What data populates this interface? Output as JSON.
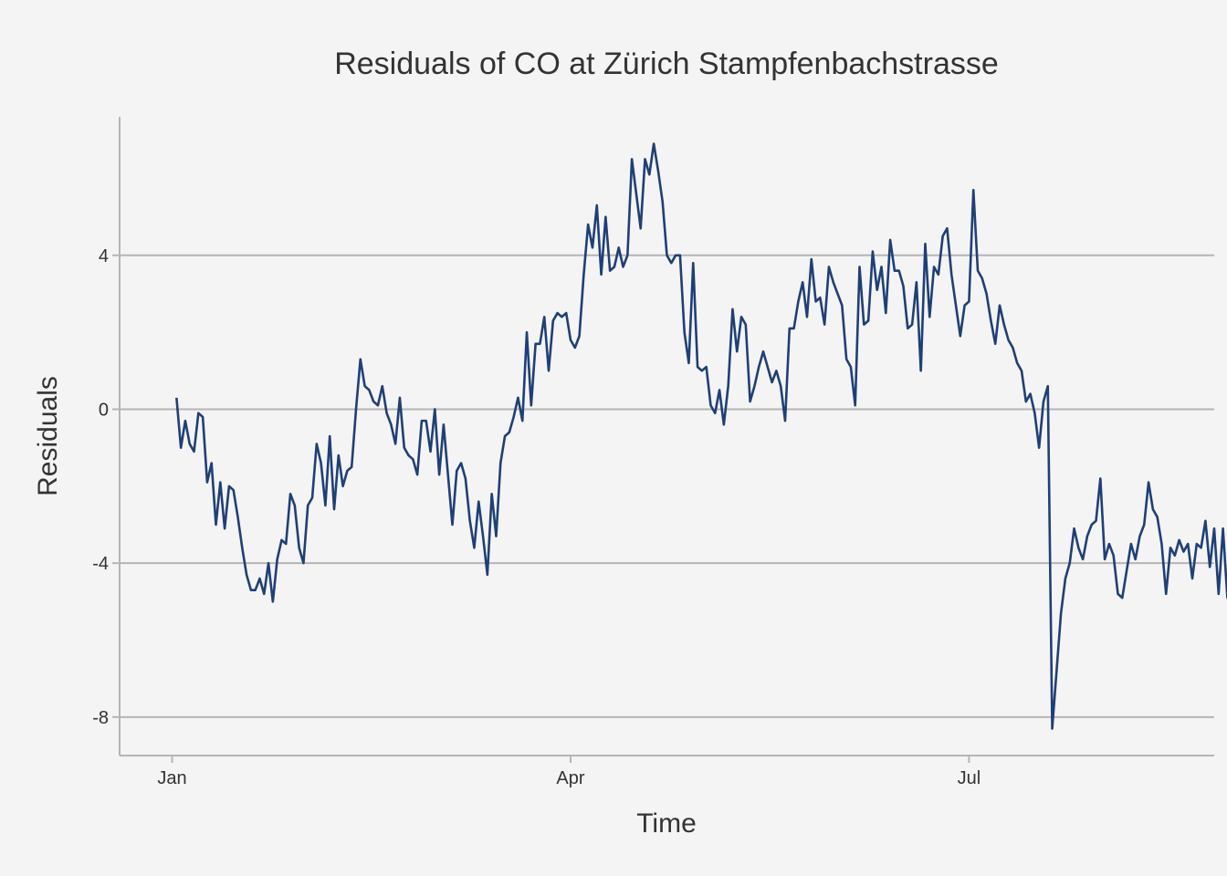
{
  "chart_data": {
    "type": "line",
    "title": "Residuals of CO at Zürich Stampfenbachstrasse",
    "xlabel": "Time",
    "ylabel": "Residuals",
    "x_ticks": [
      "Jan",
      "Apr",
      "Jul"
    ],
    "y_ticks": [
      "4",
      "0",
      "-4",
      "-8"
    ],
    "y_tick_values": [
      4,
      0,
      -4,
      -8
    ],
    "ylim": [
      -9.0,
      7.6
    ],
    "xlim": [
      "2011-12-20",
      "2012-08-26"
    ],
    "x_tick_dates": [
      "2012-01-01",
      "2012-04-01",
      "2012-07-01"
    ],
    "grid": "horizontal",
    "line_color": "#1f3f76",
    "series": [
      {
        "x_start": "2012-01-02",
        "x_step_days": 1,
        "values": [
          0.3,
          -1.0,
          -0.3,
          -0.9,
          -1.1,
          -0.1,
          -0.2,
          -1.9,
          -1.4,
          -3.0,
          -1.9,
          -3.1,
          -2.0,
          -2.1,
          -2.8,
          -3.6,
          -4.3,
          -4.7,
          -4.7,
          -4.4,
          -4.8,
          -4.0,
          -5.0,
          -3.9,
          -3.4,
          -3.5,
          -2.2,
          -2.5,
          -3.6,
          -4.0,
          -2.5,
          -2.3,
          -0.9,
          -1.4,
          -2.5,
          -0.7,
          -2.6,
          -1.2,
          -2.0,
          -1.6,
          -1.5,
          0.0,
          1.3,
          0.6,
          0.5,
          0.2,
          0.1,
          0.6,
          -0.1,
          -0.4,
          -0.9,
          0.3,
          -1.0,
          -1.2,
          -1.3,
          -1.7,
          -0.3,
          -0.3,
          -1.1,
          0.0,
          -1.7,
          -0.4,
          -1.7,
          -3.0,
          -1.6,
          -1.4,
          -1.8,
          -2.9,
          -3.6,
          -2.4,
          -3.3,
          -4.3,
          -2.2,
          -3.3,
          -1.4,
          -0.7,
          -0.6,
          -0.2,
          0.3,
          -0.3,
          2.0,
          0.1,
          1.7,
          1.7,
          2.4,
          1.0,
          2.3,
          2.5,
          2.4,
          2.5,
          1.8,
          1.6,
          1.9,
          3.5,
          4.8,
          4.2,
          5.3,
          3.5,
          5.0,
          3.6,
          3.7,
          4.2,
          3.7,
          4.0,
          6.5,
          5.6,
          4.7,
          6.5,
          6.1,
          6.9,
          6.2,
          5.4,
          4.0,
          3.8,
          4.0,
          4.0,
          2.0,
          1.2,
          3.8,
          1.1,
          1.0,
          1.1,
          0.1,
          -0.1,
          0.5,
          -0.4,
          0.6,
          2.6,
          1.5,
          2.4,
          2.2,
          0.2,
          0.6,
          1.1,
          1.5,
          1.1,
          0.7,
          1.0,
          0.6,
          -0.3,
          2.1,
          2.1,
          2.8,
          3.3,
          2.4,
          3.9,
          2.8,
          2.9,
          2.2,
          3.7,
          3.3,
          3.0,
          2.7,
          1.3,
          1.1,
          0.1,
          3.7,
          2.2,
          2.3,
          4.1,
          3.1,
          3.7,
          2.5,
          4.4,
          3.6,
          3.6,
          3.2,
          2.1,
          2.2,
          3.3,
          1.0,
          4.3,
          2.4,
          3.7,
          3.5,
          4.5,
          4.7,
          3.5,
          2.7,
          1.9,
          2.7,
          2.8,
          5.7,
          3.6,
          3.4,
          3.0,
          2.3,
          1.7,
          2.7,
          2.2,
          1.8,
          1.6,
          1.2,
          1.0,
          0.2,
          0.4,
          -0.1,
          -1.0,
          0.2,
          0.6,
          -8.3,
          -6.8,
          -5.3,
          -4.4,
          -4.0,
          -3.1,
          -3.6,
          -3.9,
          -3.3,
          -3.0,
          -2.9,
          -1.8,
          -3.9,
          -3.5,
          -3.8,
          -4.8,
          -4.9,
          -4.2,
          -3.5,
          -3.9,
          -3.3,
          -3.0,
          -1.9,
          -2.6,
          -2.8,
          -3.5,
          -4.8,
          -3.6,
          -3.8,
          -3.4,
          -3.7,
          -3.5,
          -4.4,
          -3.5,
          -3.6,
          -2.9,
          -4.1,
          -3.1,
          -4.8,
          -3.1,
          -4.9,
          -4.7,
          -5.0
        ]
      }
    ]
  }
}
